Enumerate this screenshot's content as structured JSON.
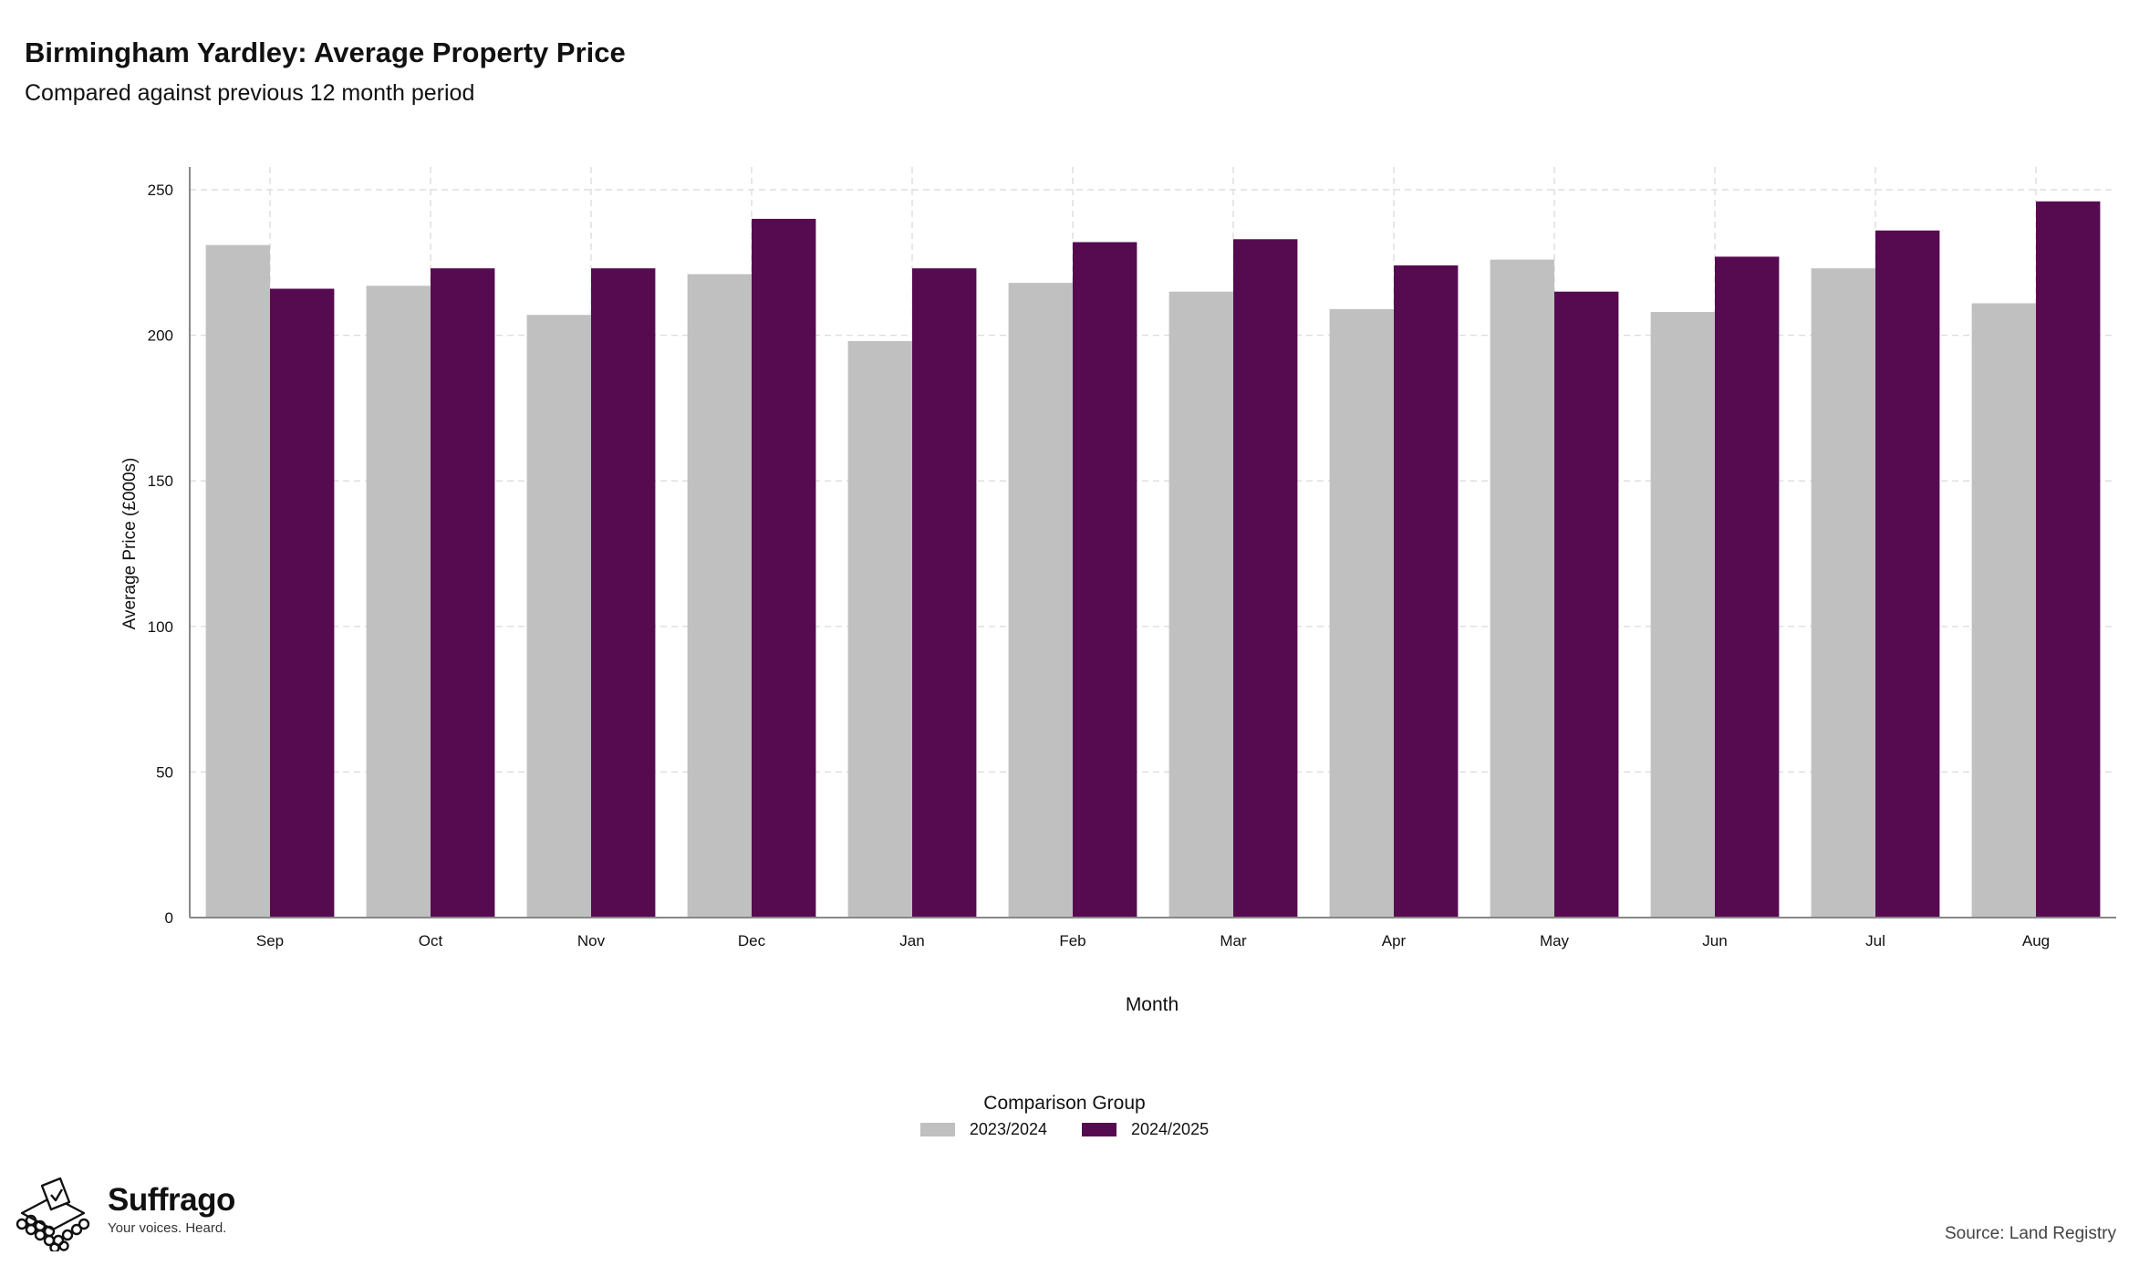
{
  "header": {
    "title": "Birmingham Yardley: Average Property Price",
    "subtitle": "Compared against previous 12 month period"
  },
  "footer": {
    "brand_name": "Suffrago",
    "brand_tagline": "Your voices. Heard.",
    "source": "Source: Land Registry"
  },
  "colors": {
    "series_prev": "#c0c0c0",
    "series_curr": "#560b51",
    "grid": "#dddddd",
    "axis": "#888888"
  },
  "chart_data": {
    "type": "bar",
    "xlabel": "Month",
    "ylabel": "Average Price (£000s)",
    "ylim": [
      0,
      250
    ],
    "yticks": [
      0,
      50,
      100,
      150,
      200,
      250
    ],
    "grid": true,
    "legend_title": "Comparison Group",
    "legend_position": "bottom",
    "categories": [
      "Sep",
      "Oct",
      "Nov",
      "Dec",
      "Jan",
      "Feb",
      "Mar",
      "Apr",
      "May",
      "Jun",
      "Jul",
      "Aug"
    ],
    "series": [
      {
        "name": "2023/2024",
        "values": [
          231,
          217,
          207,
          221,
          198,
          218,
          215,
          209,
          226,
          208,
          223,
          211
        ]
      },
      {
        "name": "2024/2025",
        "values": [
          216,
          223,
          223,
          240,
          223,
          232,
          233,
          224,
          215,
          227,
          236,
          246
        ]
      }
    ]
  }
}
